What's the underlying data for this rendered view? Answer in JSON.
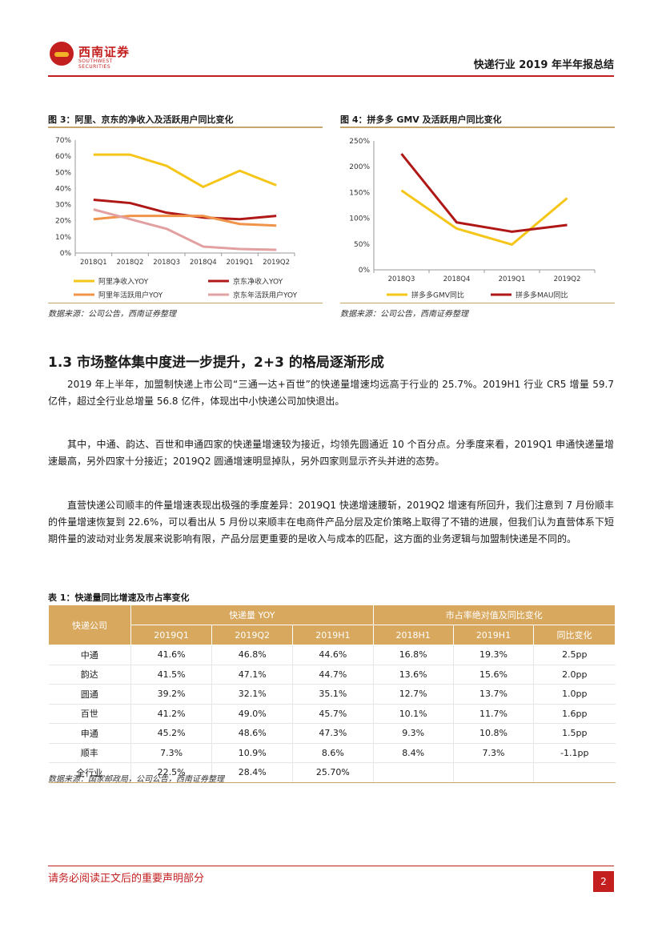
{
  "header": {
    "logo_name": "西南证券",
    "logo_sub": "SOUTHWEST SECURITIES",
    "report_title": "快递行业 2019 年半年报总结"
  },
  "figures": [
    {
      "title": "图 3：阿里、京东的净收入及活跃用户同比变化",
      "source": "数据来源：公司公告，西南证券整理"
    },
    {
      "title": "图 4：拼多多 GMV 及活跃用户同比变化",
      "source": "数据来源：公司公告，西南证券整理"
    }
  ],
  "chart_data": [
    {
      "type": "line",
      "title": "图 3：阿里、京东的净收入及活跃用户同比变化",
      "categories": [
        "2018Q1",
        "2018Q2",
        "2018Q3",
        "2018Q4",
        "2019Q1",
        "2019Q2"
      ],
      "ylim": [
        0,
        70
      ],
      "yticks": [
        "0%",
        "10%",
        "20%",
        "30%",
        "40%",
        "50%",
        "60%",
        "70%"
      ],
      "series": [
        {
          "name": "阿里净收入YOY",
          "color": "#f5c518",
          "values": [
            61,
            61,
            54,
            41,
            51,
            42
          ]
        },
        {
          "name": "京东净收入YOY",
          "color": "#b01818",
          "values": [
            33,
            31,
            25,
            22,
            21,
            23
          ]
        },
        {
          "name": "阿里年活跃用户YOY",
          "color": "#f0944a",
          "values": [
            21,
            23,
            23,
            23,
            18,
            17
          ]
        },
        {
          "name": "京东年活跃用户YOY",
          "color": "#e3a0a0",
          "values": [
            27,
            21,
            15,
            4,
            2.5,
            2
          ]
        }
      ]
    },
    {
      "type": "line",
      "title": "图 4：拼多多 GMV 及活跃用户同比变化",
      "categories": [
        "2018Q3",
        "2018Q4",
        "2019Q1",
        "2019Q2"
      ],
      "ylim": [
        0,
        250
      ],
      "yticks": [
        "0%",
        "50%",
        "100%",
        "150%",
        "200%",
        "250%"
      ],
      "series": [
        {
          "name": "拼多多GMV同比",
          "color": "#f5c518",
          "values": [
            154,
            80,
            49,
            139
          ]
        },
        {
          "name": "拼多多MAU同比",
          "color": "#b01818",
          "values": [
            225,
            92,
            74,
            87
          ]
        }
      ]
    }
  ],
  "section": {
    "title": "1.3 市场整体集中度进一步提升，2+3 的格局逐渐形成",
    "paragraphs": [
      "2019 年上半年，加盟制快递上市公司“三通一达+百世”的快递量增速均远高于行业的 25.7%。2019H1 行业 CR5 增量 59.7 亿件，超过全行业总增量 56.8 亿件，体现出中小快递公司加快退出。",
      "其中，中通、韵达、百世和申通四家的快递量增速较为接近，均领先圆通近 10 个百分点。分季度来看，2019Q1 申通快递量增速最高，另外四家十分接近；2019Q2 圆通增速明显掉队，另外四家则显示齐头并进的态势。",
      "直营快递公司顺丰的件量增速表现出极强的季度差异：2019Q1 快递增速腰斩，2019Q2 增速有所回升，我们注意到 7 月份顺丰的件量增速恢复到 22.6%，可以看出从 5 月份以来顺丰在电商件产品分层及定价策略上取得了不错的进展，但我们认为直营体系下短期件量的波动对业务发展来说影响有限，产品分层更重要的是收入与成本的匹配，这方面的业务逻辑与加盟制快递是不同的。"
    ]
  },
  "table": {
    "title": "表 1：快递量同比增速及市占率变化",
    "header_company": "快递公司",
    "group_yoy": "快递量 YOY",
    "group_share": "市占率绝对值及同比变化",
    "sub_headers": [
      "2019Q1",
      "2019Q2",
      "2019H1",
      "2018H1",
      "2019H1",
      "同比变化"
    ],
    "rows": [
      [
        "中通",
        "41.6%",
        "46.8%",
        "44.6%",
        "16.8%",
        "19.3%",
        "2.5pp"
      ],
      [
        "韵达",
        "41.5%",
        "47.1%",
        "44.7%",
        "13.6%",
        "15.6%",
        "2.0pp"
      ],
      [
        "圆通",
        "39.2%",
        "32.1%",
        "35.1%",
        "12.7%",
        "13.7%",
        "1.0pp"
      ],
      [
        "百世",
        "41.2%",
        "49.0%",
        "45.7%",
        "10.1%",
        "11.7%",
        "1.6pp"
      ],
      [
        "申通",
        "45.2%",
        "48.6%",
        "47.3%",
        "9.3%",
        "10.8%",
        "1.5pp"
      ],
      [
        "顺丰",
        "7.3%",
        "10.9%",
        "8.6%",
        "8.4%",
        "7.3%",
        "-1.1pp"
      ],
      [
        "全行业",
        "22.5%",
        "28.4%",
        "25.70%",
        "",
        "",
        ""
      ]
    ],
    "source": "数据来源：国家邮政局，公司公告，西南证券整理"
  },
  "footer": {
    "disclaimer": "请务必阅读正文后的重要声明部分",
    "page": "2"
  }
}
